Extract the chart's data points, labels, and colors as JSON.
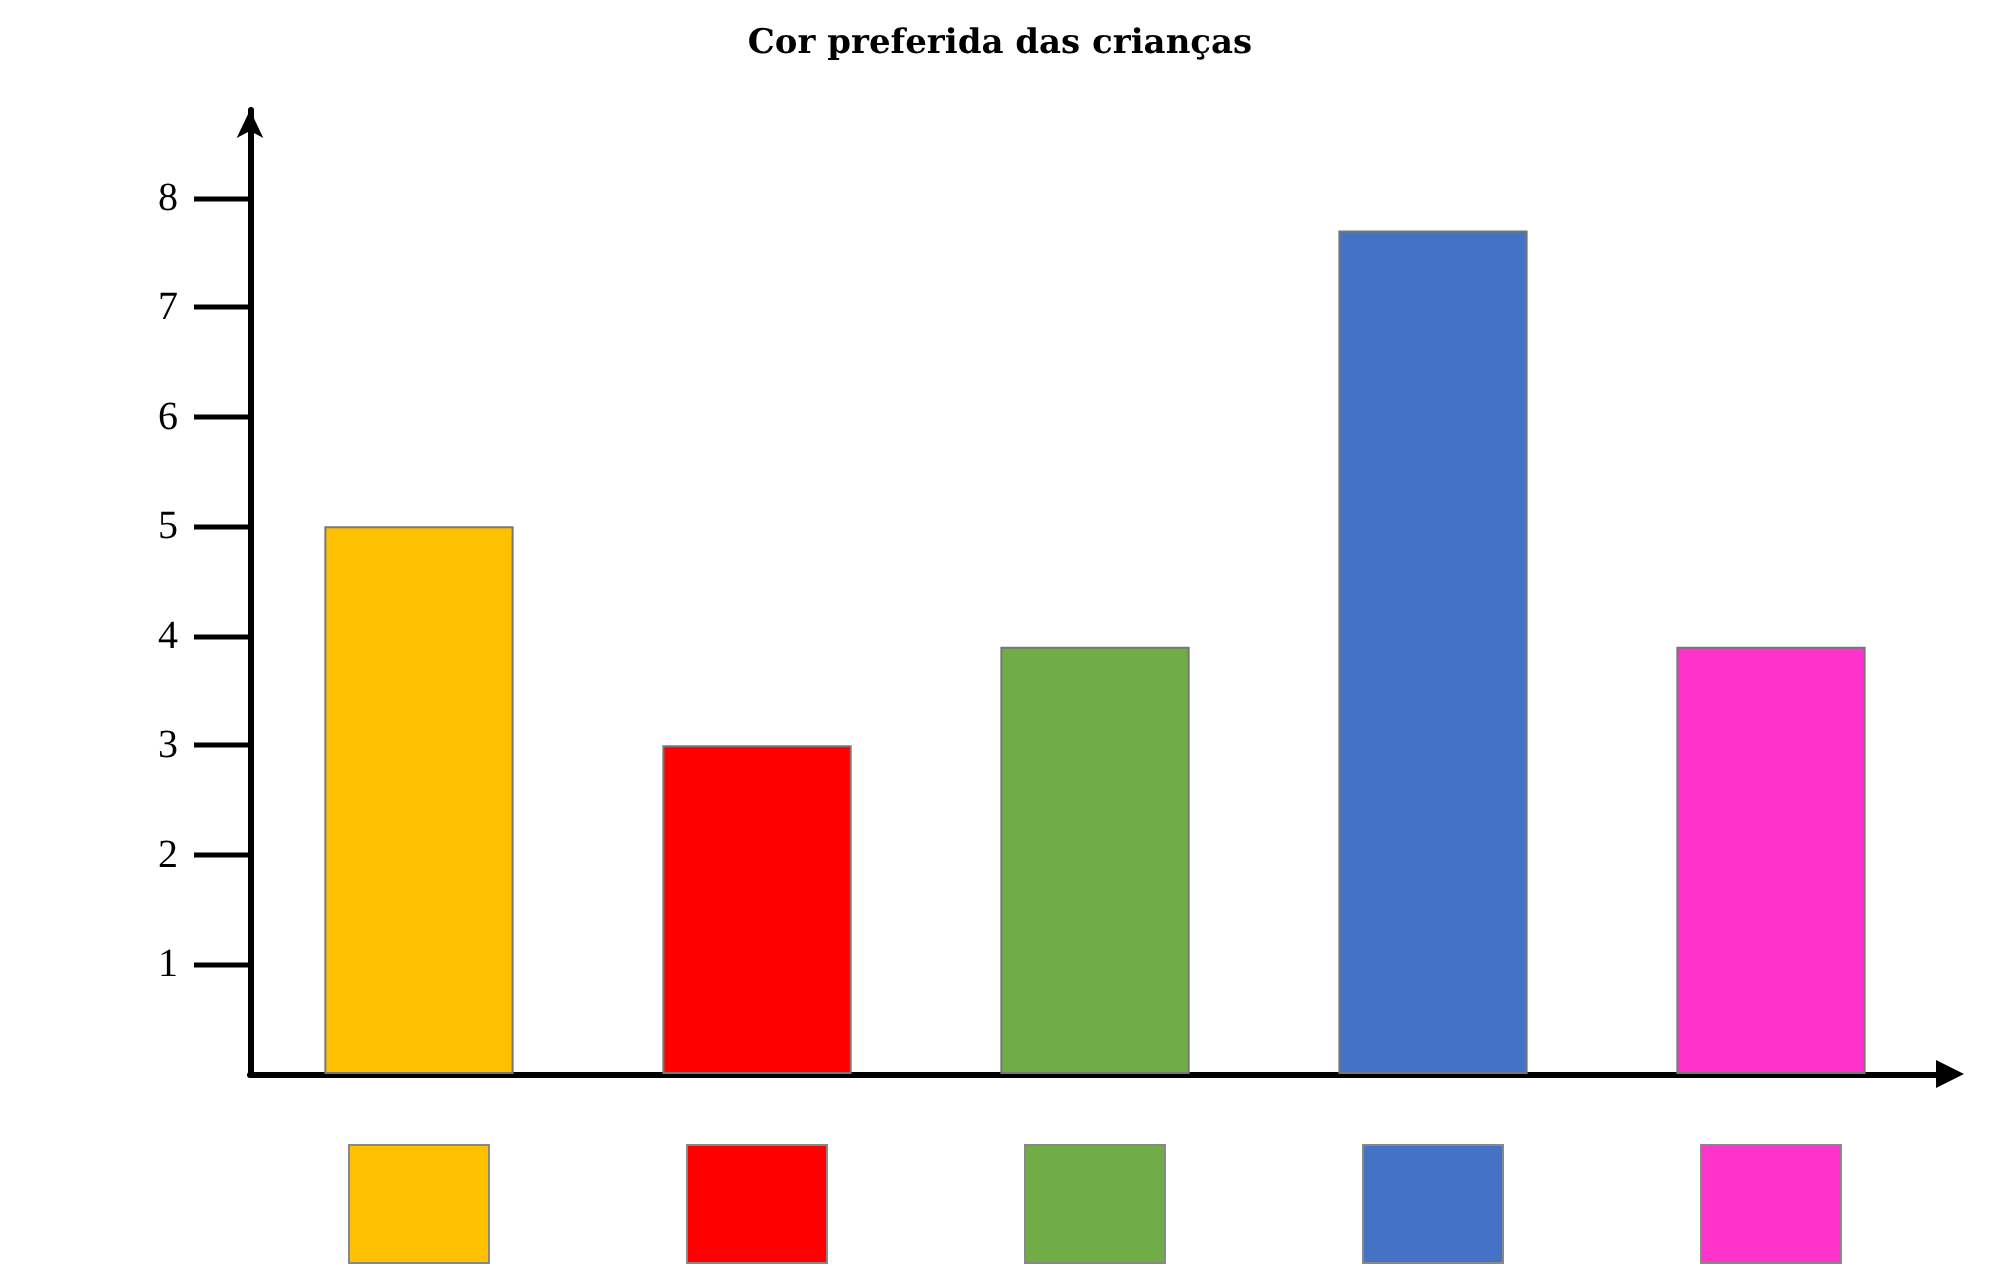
{
  "chart_data": {
    "type": "bar",
    "title": "Cor preferida das crianças",
    "categories": [
      null,
      null,
      null,
      null,
      null
    ],
    "values": [
      5,
      3,
      3.9,
      7.7,
      3.9
    ],
    "colors": [
      "#ffc000",
      "#ff0000",
      "#70ad47",
      "#4472c4",
      "#ff33cc"
    ],
    "ylim": [
      0,
      8.8
    ],
    "yticks": [
      1,
      2,
      3,
      4,
      5,
      6,
      7,
      8
    ],
    "grid": false
  }
}
